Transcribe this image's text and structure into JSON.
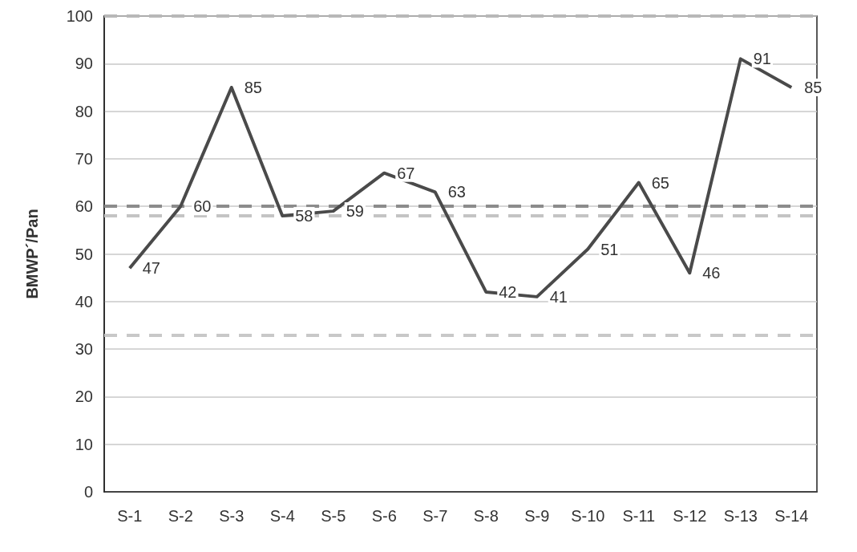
{
  "chart_data": {
    "type": "line",
    "ylabel": "BMWP´/Pan",
    "categories": [
      "S-1",
      "S-2",
      "S-3",
      "S-4",
      "S-5",
      "S-6",
      "S-7",
      "S-8",
      "S-9",
      "S-10",
      "S-11",
      "S-12",
      "S-13",
      "S-14"
    ],
    "series": [
      {
        "color": "#4a4a4a",
        "values": [
          47,
          60,
          85,
          58,
          59,
          67,
          63,
          42,
          41,
          51,
          65,
          46,
          91,
          85
        ]
      }
    ],
    "ylim": [
      0,
      100
    ],
    "yticks": [
      0,
      10,
      20,
      30,
      40,
      50,
      60,
      70,
      80,
      90,
      100
    ],
    "grid": "y",
    "marker": "none",
    "line_style": "solid",
    "data_labels": true,
    "ref_lines": [
      {
        "axis": "y",
        "value": 100,
        "color": "#b8b8b8",
        "line_style": "dashed"
      },
      {
        "axis": "y",
        "value": 60,
        "color": "#8c8c8c",
        "line_style": "dashed"
      },
      {
        "axis": "y",
        "value": 58,
        "color": "#c4c4c4",
        "line_style": "dashed"
      },
      {
        "axis": "y",
        "value": 33,
        "color": "#c8c8c8",
        "line_style": "dashed"
      }
    ]
  }
}
